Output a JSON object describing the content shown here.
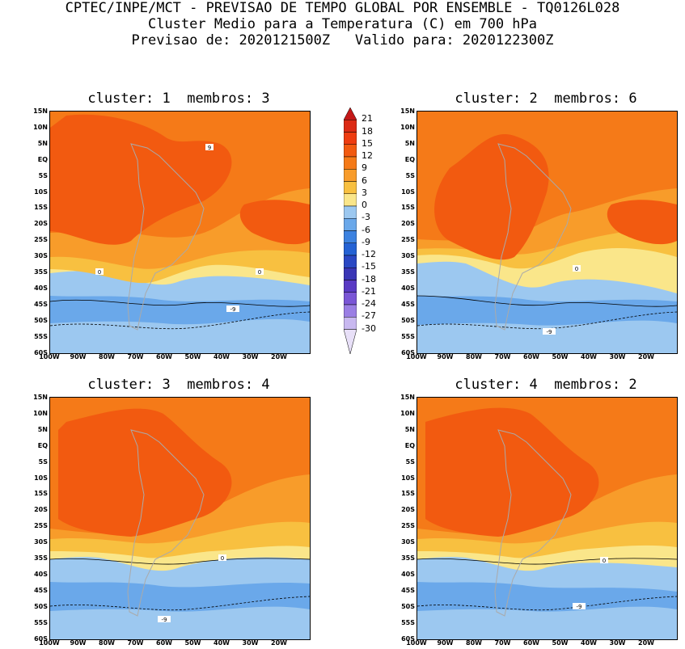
{
  "header": {
    "line1": "CPTEC/INPE/MCT - PREVISAO DE TEMPO GLOBAL POR ENSEMBLE - TQ0126L028",
    "line2": "Cluster Medio para a Temperatura (C) em 700 hPa",
    "line3": "Previsao de: 2020121500Z   Valido para: 2020122300Z"
  },
  "panels": [
    {
      "title": "cluster: 1  membros: 3"
    },
    {
      "title": "cluster: 2  membros: 6"
    },
    {
      "title": "cluster: 3  membros: 4"
    },
    {
      "title": "cluster: 4  membros: 2"
    }
  ],
  "lat_labels": [
    "15N",
    "10N",
    "5N",
    "EQ",
    "5S",
    "10S",
    "15S",
    "20S",
    "25S",
    "30S",
    "35S",
    "40S",
    "45S",
    "50S",
    "55S",
    "60S"
  ],
  "lon_labels": [
    "100W",
    "90W",
    "80W",
    "70W",
    "60W",
    "50W",
    "40W",
    "30W",
    "20W"
  ],
  "colorbar": {
    "labels": [
      "21",
      "18",
      "15",
      "12",
      "9",
      "6",
      "3",
      "0",
      "-3",
      "-6",
      "-9",
      "-12",
      "-15",
      "-18",
      "-21",
      "-24",
      "-27",
      "-30"
    ],
    "colors": [
      "#c41818",
      "#dc2a14",
      "#ee3c10",
      "#f25a10",
      "#f57a18",
      "#f89c2a",
      "#f8c040",
      "#fae68a",
      "#9cc8f0",
      "#6aa8ea",
      "#3c82e0",
      "#2462d4",
      "#2a48c4",
      "#3a36b6",
      "#5a3ac4",
      "#7a56d6",
      "#9a7ee4",
      "#c8b8f0",
      "#e8e0f8"
    ]
  },
  "contour_labels": {
    "nine": "9",
    "zero": "0",
    "minus_nine": "-9"
  }
}
